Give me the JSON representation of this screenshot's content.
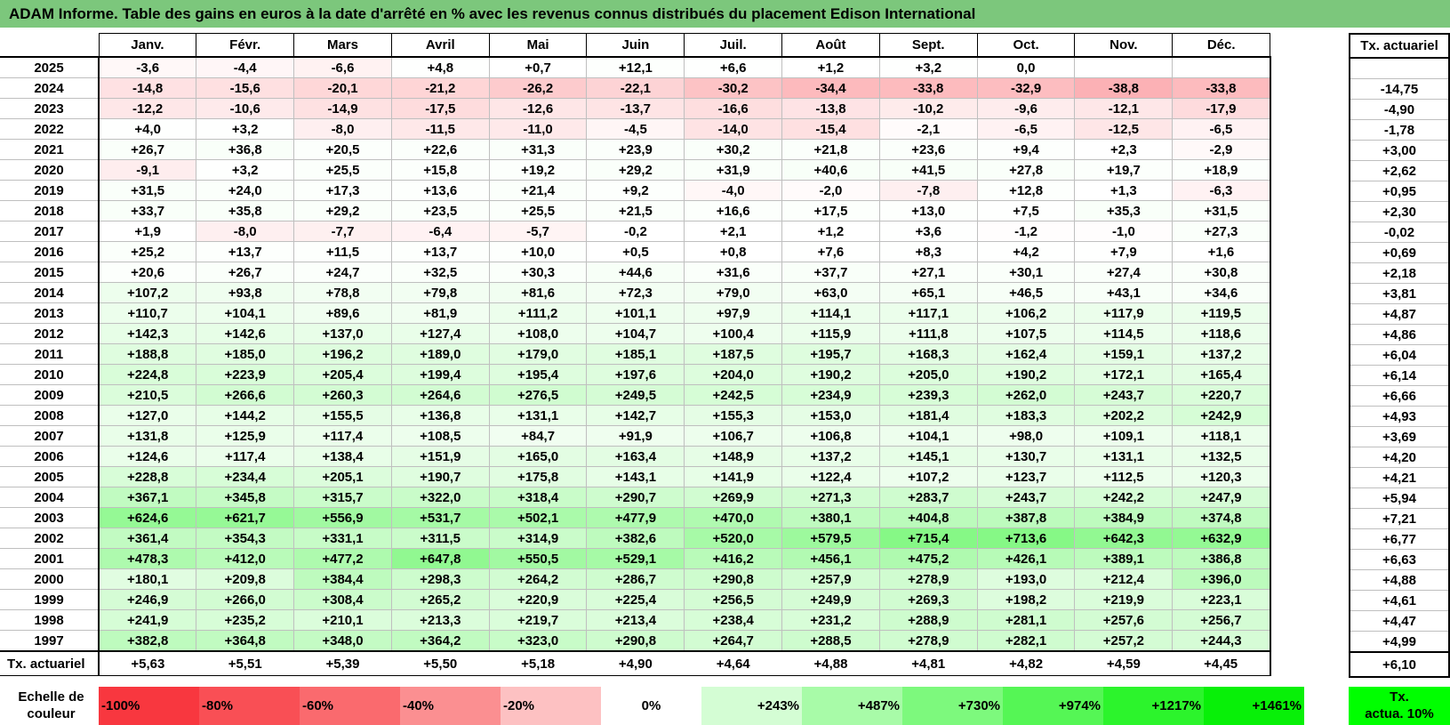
{
  "title": "ADAM Informe. Table des gains en euros à la date d'arrêté en % avec les revenus connus distribués du placement Edison International",
  "months": [
    "Janv.",
    "Févr.",
    "Mars",
    "Avril",
    "Mai",
    "Juin",
    "Juil.",
    "Août",
    "Sept.",
    "Oct.",
    "Nov.",
    "Déc."
  ],
  "actuarial_header": "Tx. actuariel",
  "rows": [
    {
      "year": "2025",
      "values": [
        "-3,6",
        "-4,4",
        "-6,6",
        "+4,8",
        "+0,7",
        "+12,1",
        "+6,6",
        "+1,2",
        "+3,2",
        "0,0",
        "",
        ""
      ],
      "rate": ""
    },
    {
      "year": "2024",
      "values": [
        "-14,8",
        "-15,6",
        "-20,1",
        "-21,2",
        "-26,2",
        "-22,1",
        "-30,2",
        "-34,4",
        "-33,8",
        "-32,9",
        "-38,8",
        "-33,8"
      ],
      "rate": "-14,75"
    },
    {
      "year": "2023",
      "values": [
        "-12,2",
        "-10,6",
        "-14,9",
        "-17,5",
        "-12,6",
        "-13,7",
        "-16,6",
        "-13,8",
        "-10,2",
        "-9,6",
        "-12,1",
        "-17,9"
      ],
      "rate": "-4,90"
    },
    {
      "year": "2022",
      "values": [
        "+4,0",
        "+3,2",
        "-8,0",
        "-11,5",
        "-11,0",
        "-4,5",
        "-14,0",
        "-15,4",
        "-2,1",
        "-6,5",
        "-12,5",
        "-6,5"
      ],
      "rate": "-1,78"
    },
    {
      "year": "2021",
      "values": [
        "+26,7",
        "+36,8",
        "+20,5",
        "+22,6",
        "+31,3",
        "+23,9",
        "+30,2",
        "+21,8",
        "+23,6",
        "+9,4",
        "+2,3",
        "-2,9"
      ],
      "rate": "+3,00"
    },
    {
      "year": "2020",
      "values": [
        "-9,1",
        "+3,2",
        "+25,5",
        "+15,8",
        "+19,2",
        "+29,2",
        "+31,9",
        "+40,6",
        "+41,5",
        "+27,8",
        "+19,7",
        "+18,9"
      ],
      "rate": "+2,62"
    },
    {
      "year": "2019",
      "values": [
        "+31,5",
        "+24,0",
        "+17,3",
        "+13,6",
        "+21,4",
        "+9,2",
        "-4,0",
        "-2,0",
        "-7,8",
        "+12,8",
        "+1,3",
        "-6,3"
      ],
      "rate": "+0,95"
    },
    {
      "year": "2018",
      "values": [
        "+33,7",
        "+35,8",
        "+29,2",
        "+23,5",
        "+25,5",
        "+21,5",
        "+16,6",
        "+17,5",
        "+13,0",
        "+7,5",
        "+35,3",
        "+31,5"
      ],
      "rate": "+2,30"
    },
    {
      "year": "2017",
      "values": [
        "+1,9",
        "-8,0",
        "-7,7",
        "-6,4",
        "-5,7",
        "-0,2",
        "+2,1",
        "+1,2",
        "+3,6",
        "-1,2",
        "-1,0",
        "+27,3"
      ],
      "rate": "-0,02"
    },
    {
      "year": "2016",
      "values": [
        "+25,2",
        "+13,7",
        "+11,5",
        "+13,7",
        "+10,0",
        "+0,5",
        "+0,8",
        "+7,6",
        "+8,3",
        "+4,2",
        "+7,9",
        "+1,6"
      ],
      "rate": "+0,69"
    },
    {
      "year": "2015",
      "values": [
        "+20,6",
        "+26,7",
        "+24,7",
        "+32,5",
        "+30,3",
        "+44,6",
        "+31,6",
        "+37,7",
        "+27,1",
        "+30,1",
        "+27,4",
        "+30,8"
      ],
      "rate": "+2,18"
    },
    {
      "year": "2014",
      "values": [
        "+107,2",
        "+93,8",
        "+78,8",
        "+79,8",
        "+81,6",
        "+72,3",
        "+79,0",
        "+63,0",
        "+65,1",
        "+46,5",
        "+43,1",
        "+34,6"
      ],
      "rate": "+3,81"
    },
    {
      "year": "2013",
      "values": [
        "+110,7",
        "+104,1",
        "+89,6",
        "+81,9",
        "+111,2",
        "+101,1",
        "+97,9",
        "+114,1",
        "+117,1",
        "+106,2",
        "+117,9",
        "+119,5"
      ],
      "rate": "+4,87"
    },
    {
      "year": "2012",
      "values": [
        "+142,3",
        "+142,6",
        "+137,0",
        "+127,4",
        "+108,0",
        "+104,7",
        "+100,4",
        "+115,9",
        "+111,8",
        "+107,5",
        "+114,5",
        "+118,6"
      ],
      "rate": "+4,86"
    },
    {
      "year": "2011",
      "values": [
        "+188,8",
        "+185,0",
        "+196,2",
        "+189,0",
        "+179,0",
        "+185,1",
        "+187,5",
        "+195,7",
        "+168,3",
        "+162,4",
        "+159,1",
        "+137,2"
      ],
      "rate": "+6,04"
    },
    {
      "year": "2010",
      "values": [
        "+224,8",
        "+223,9",
        "+205,4",
        "+199,4",
        "+195,4",
        "+197,6",
        "+204,0",
        "+190,2",
        "+205,0",
        "+190,2",
        "+172,1",
        "+165,4"
      ],
      "rate": "+6,14"
    },
    {
      "year": "2009",
      "values": [
        "+210,5",
        "+266,6",
        "+260,3",
        "+264,6",
        "+276,5",
        "+249,5",
        "+242,5",
        "+234,9",
        "+239,3",
        "+262,0",
        "+243,7",
        "+220,7"
      ],
      "rate": "+6,66"
    },
    {
      "year": "2008",
      "values": [
        "+127,0",
        "+144,2",
        "+155,5",
        "+136,8",
        "+131,1",
        "+142,7",
        "+155,3",
        "+153,0",
        "+181,4",
        "+183,3",
        "+202,2",
        "+242,9"
      ],
      "rate": "+4,93"
    },
    {
      "year": "2007",
      "values": [
        "+131,8",
        "+125,9",
        "+117,4",
        "+108,5",
        "+84,7",
        "+91,9",
        "+106,7",
        "+106,8",
        "+104,1",
        "+98,0",
        "+109,1",
        "+118,1"
      ],
      "rate": "+3,69"
    },
    {
      "year": "2006",
      "values": [
        "+124,6",
        "+117,4",
        "+138,4",
        "+151,9",
        "+165,0",
        "+163,4",
        "+148,9",
        "+137,2",
        "+145,1",
        "+130,7",
        "+131,1",
        "+132,5"
      ],
      "rate": "+4,20"
    },
    {
      "year": "2005",
      "values": [
        "+228,8",
        "+234,4",
        "+205,1",
        "+190,7",
        "+175,8",
        "+143,1",
        "+141,9",
        "+122,4",
        "+107,2",
        "+123,7",
        "+112,5",
        "+120,3"
      ],
      "rate": "+4,21"
    },
    {
      "year": "2004",
      "values": [
        "+367,1",
        "+345,8",
        "+315,7",
        "+322,0",
        "+318,4",
        "+290,7",
        "+269,9",
        "+271,3",
        "+283,7",
        "+243,7",
        "+242,2",
        "+247,9"
      ],
      "rate": "+5,94"
    },
    {
      "year": "2003",
      "values": [
        "+624,6",
        "+621,7",
        "+556,9",
        "+531,7",
        "+502,1",
        "+477,9",
        "+470,0",
        "+380,1",
        "+404,8",
        "+387,8",
        "+384,9",
        "+374,8"
      ],
      "rate": "+7,21"
    },
    {
      "year": "2002",
      "values": [
        "+361,4",
        "+354,3",
        "+331,1",
        "+311,5",
        "+314,9",
        "+382,6",
        "+520,0",
        "+579,5",
        "+715,4",
        "+713,6",
        "+642,3",
        "+632,9"
      ],
      "rate": "+6,77"
    },
    {
      "year": "2001",
      "values": [
        "+478,3",
        "+412,0",
        "+477,2",
        "+647,8",
        "+550,5",
        "+529,1",
        "+416,2",
        "+456,1",
        "+475,2",
        "+426,1",
        "+389,1",
        "+386,8"
      ],
      "rate": "+6,63"
    },
    {
      "year": "2000",
      "values": [
        "+180,1",
        "+209,8",
        "+384,4",
        "+298,3",
        "+264,2",
        "+286,7",
        "+290,8",
        "+257,9",
        "+278,9",
        "+193,0",
        "+212,4",
        "+396,0"
      ],
      "rate": "+4,88"
    },
    {
      "year": "1999",
      "values": [
        "+246,9",
        "+266,0",
        "+308,4",
        "+265,2",
        "+220,9",
        "+225,4",
        "+256,5",
        "+249,9",
        "+269,3",
        "+198,2",
        "+219,9",
        "+223,1"
      ],
      "rate": "+4,61"
    },
    {
      "year": "1998",
      "values": [
        "+241,9",
        "+235,2",
        "+210,1",
        "+213,3",
        "+219,7",
        "+213,4",
        "+238,4",
        "+231,2",
        "+288,9",
        "+281,1",
        "+257,6",
        "+256,7"
      ],
      "rate": "+4,47"
    },
    {
      "year": "1997",
      "values": [
        "+382,8",
        "+364,8",
        "+348,0",
        "+364,2",
        "+323,0",
        "+290,8",
        "+264,7",
        "+288,5",
        "+278,9",
        "+282,1",
        "+257,2",
        "+244,3"
      ],
      "rate": "+4,99"
    }
  ],
  "footer": {
    "label": "Tx. actuariel",
    "values": [
      "+5,63",
      "+5,51",
      "+5,39",
      "+5,50",
      "+5,18",
      "+4,90",
      "+4,64",
      "+4,88",
      "+4,81",
      "+4,82",
      "+4,59",
      "+4,45"
    ],
    "rate": "+6,10"
  },
  "scale": {
    "label_line1": "Echelle de",
    "label_line2": "couleur",
    "cells": [
      {
        "label": "-100%",
        "color": "#f8373f"
      },
      {
        "label": "-80%",
        "color": "#f94f55"
      },
      {
        "label": "-60%",
        "color": "#fa6a6e"
      },
      {
        "label": "-40%",
        "color": "#fb8f91"
      },
      {
        "label": "-20%",
        "color": "#fdc1c2"
      },
      {
        "label": "0%",
        "color": "#ffffff"
      },
      {
        "label": "+243%",
        "color": "#d4fdd4"
      },
      {
        "label": "+487%",
        "color": "#a8fba8"
      },
      {
        "label": "+730%",
        "color": "#7df97d"
      },
      {
        "label": "+974%",
        "color": "#55f655"
      },
      {
        "label": "+1217%",
        "color": "#2cf42c"
      },
      {
        "label": "+1461%",
        "color": "#08f008"
      }
    ],
    "actua_line1": "Tx.",
    "actua_line2": "actua. 10%",
    "actua_color": "#00ff00"
  },
  "colors": {
    "title_bg": "#7cc77c",
    "negative": "#f8373f",
    "positive": "#08f008"
  }
}
